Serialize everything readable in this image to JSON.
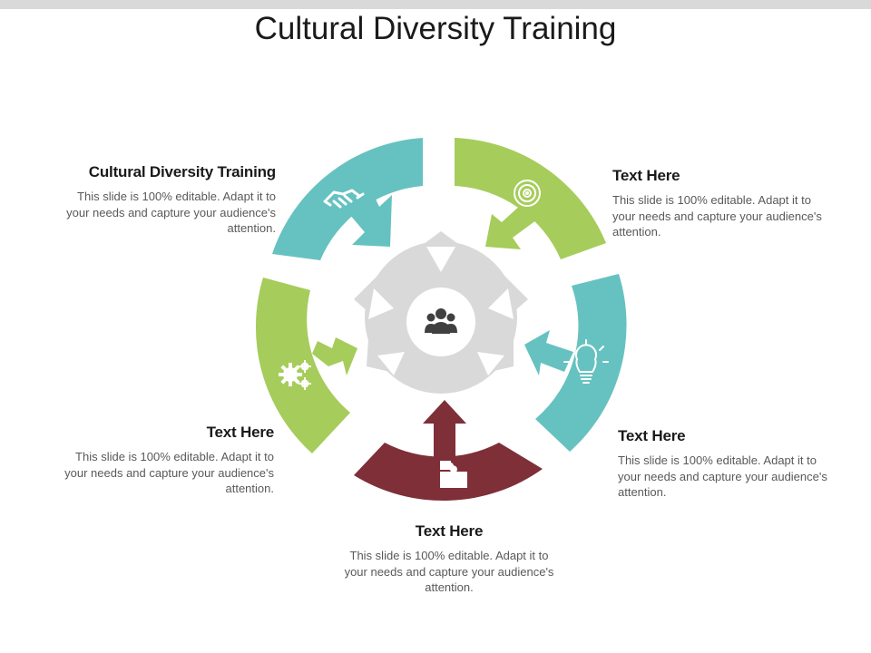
{
  "title": "Cultural Diversity Training",
  "colors": {
    "teal": "#66c2c0",
    "green": "#a6cc5b",
    "maroon": "#7e2f38",
    "hub_gray": "#d9d9d9",
    "icon_white": "#ffffff",
    "icon_dark": "#404040"
  },
  "hub": {
    "icon": "people-group-icon"
  },
  "segments": [
    {
      "id": "top-left",
      "color": "teal",
      "icon": "handshake-icon"
    },
    {
      "id": "top-right",
      "color": "green",
      "icon": "target-icon"
    },
    {
      "id": "right",
      "color": "teal",
      "icon": "lightbulb-icon"
    },
    {
      "id": "bottom",
      "color": "maroon",
      "icon": "puzzle-icon"
    },
    {
      "id": "left",
      "color": "green",
      "icon": "gears-icon"
    }
  ],
  "blocks": {
    "top_left": {
      "heading": "Cultural Diversity Training",
      "body": "This slide is 100% editable. Adapt it to your needs and capture your audience's attention."
    },
    "top_right": {
      "heading": "Text Here",
      "body": "This slide is 100% editable. Adapt it to your needs and capture your audience's attention."
    },
    "right": {
      "heading": "Text Here",
      "body": "This slide is 100% editable. Adapt it to your needs and capture your audience's attention."
    },
    "left": {
      "heading": "Text Here",
      "body": "This slide is 100% editable. Adapt it to your needs and capture your audience's attention."
    },
    "bottom": {
      "heading": "Text Here",
      "body": "This slide is 100% editable. Adapt it to your needs and capture your audience's attention."
    }
  }
}
